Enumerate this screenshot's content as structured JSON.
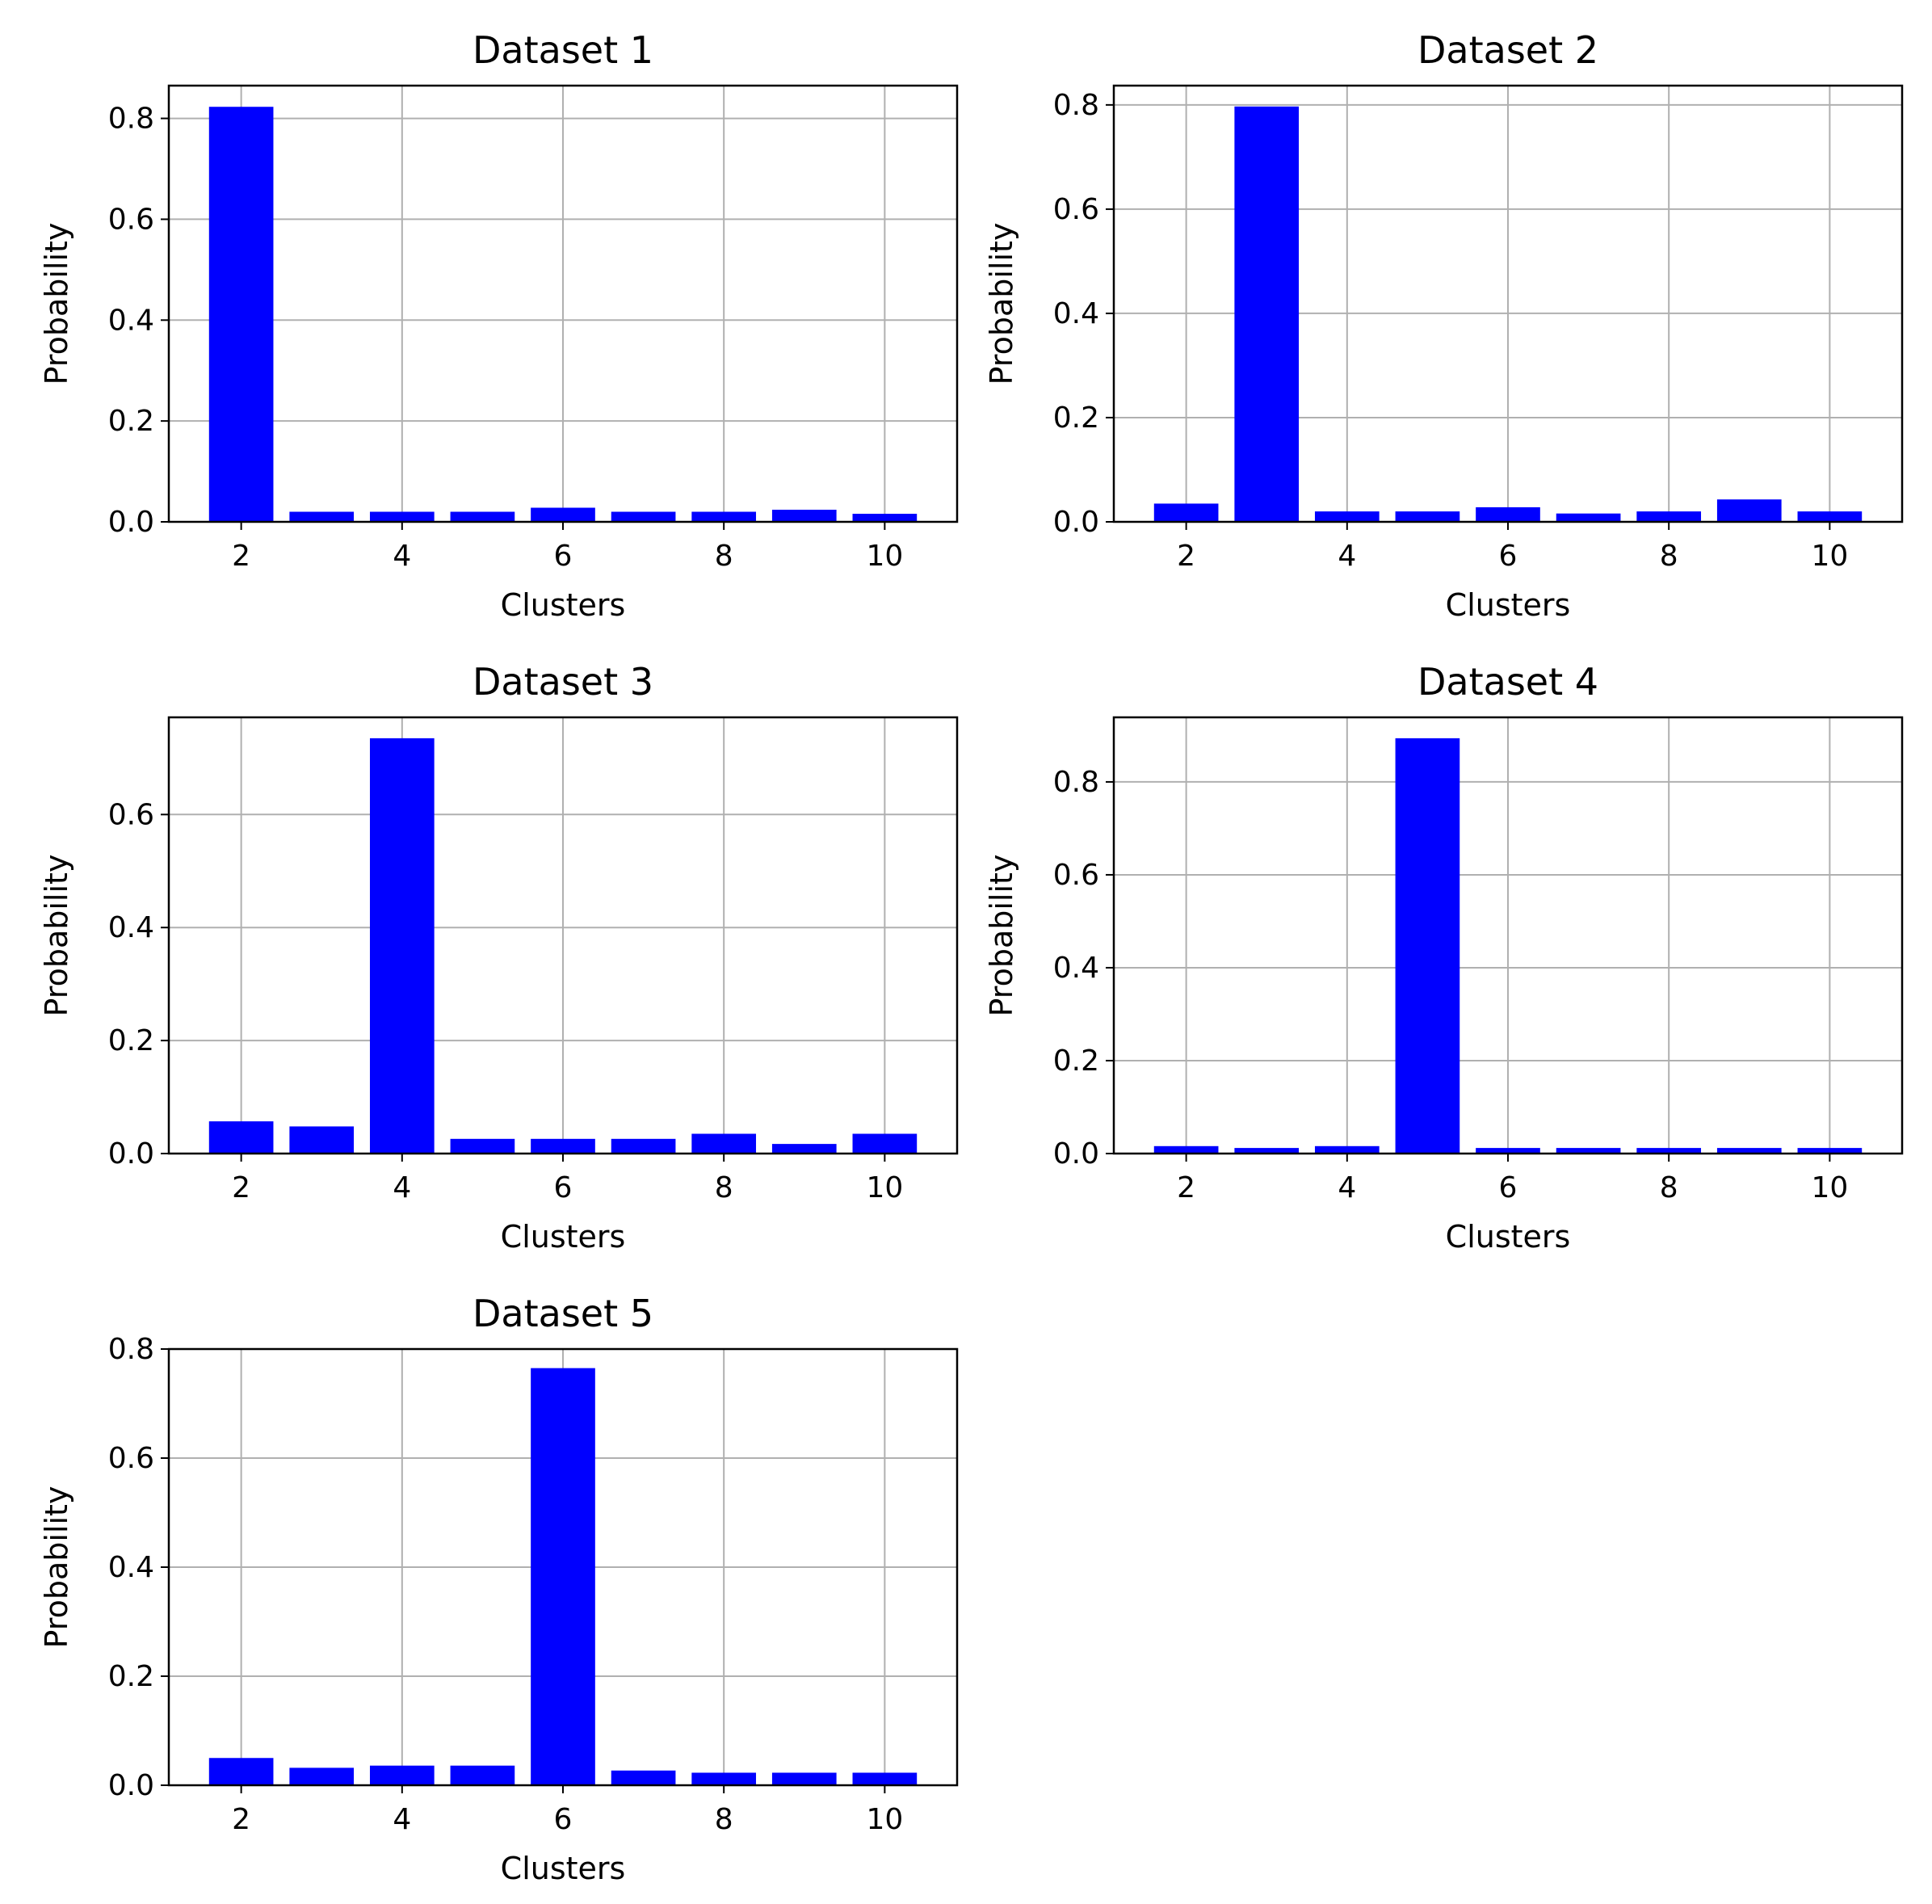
{
  "style": {
    "bar_color": "#0000ff",
    "grid_color": "#b0b0b0",
    "axis_color": "#000000",
    "background": "#ffffff"
  },
  "chart_data": [
    {
      "type": "bar",
      "title": "Dataset 1",
      "xlabel": "Clusters",
      "ylabel": "Probability",
      "grid": true,
      "x": [
        2,
        3,
        4,
        5,
        6,
        7,
        8,
        9,
        10
      ],
      "values": [
        0.823,
        0.02,
        0.02,
        0.02,
        0.028,
        0.02,
        0.02,
        0.024,
        0.016
      ],
      "xlim": [
        1.1,
        10.9
      ],
      "ylim": [
        0,
        0.865
      ],
      "xticks": [
        2,
        4,
        6,
        8,
        10
      ],
      "xtick_labels": [
        "2",
        "4",
        "6",
        "8",
        "10"
      ],
      "yticks": [
        0.0,
        0.2,
        0.4,
        0.6,
        0.8
      ],
      "ytick_labels": [
        "0.0",
        "0.2",
        "0.4",
        "0.6",
        "0.8"
      ]
    },
    {
      "type": "bar",
      "title": "Dataset 2",
      "xlabel": "Clusters",
      "ylabel": "Probability",
      "grid": true,
      "x": [
        2,
        3,
        4,
        5,
        6,
        7,
        8,
        9,
        10
      ],
      "values": [
        0.035,
        0.797,
        0.02,
        0.02,
        0.028,
        0.016,
        0.02,
        0.043,
        0.02
      ],
      "xlim": [
        1.1,
        10.9
      ],
      "ylim": [
        0,
        0.837
      ],
      "xticks": [
        2,
        4,
        6,
        8,
        10
      ],
      "xtick_labels": [
        "2",
        "4",
        "6",
        "8",
        "10"
      ],
      "yticks": [
        0.0,
        0.2,
        0.4,
        0.6,
        0.8
      ],
      "ytick_labels": [
        "0.0",
        "0.2",
        "0.4",
        "0.6",
        "0.8"
      ]
    },
    {
      "type": "bar",
      "title": "Dataset 3",
      "xlabel": "Clusters",
      "ylabel": "Probability",
      "grid": true,
      "x": [
        2,
        3,
        4,
        5,
        6,
        7,
        8,
        9,
        10
      ],
      "values": [
        0.057,
        0.048,
        0.735,
        0.026,
        0.026,
        0.026,
        0.035,
        0.017,
        0.035
      ],
      "xlim": [
        1.1,
        10.9
      ],
      "ylim": [
        0,
        0.772
      ],
      "xticks": [
        2,
        4,
        6,
        8,
        10
      ],
      "xtick_labels": [
        "2",
        "4",
        "6",
        "8",
        "10"
      ],
      "yticks": [
        0.0,
        0.2,
        0.4,
        0.6
      ],
      "ytick_labels": [
        "0.0",
        "0.2",
        "0.4",
        "0.6"
      ]
    },
    {
      "type": "bar",
      "title": "Dataset 4",
      "xlabel": "Clusters",
      "ylabel": "Probability",
      "grid": true,
      "x": [
        2,
        3,
        4,
        5,
        6,
        7,
        8,
        9,
        10
      ],
      "values": [
        0.016,
        0.012,
        0.016,
        0.894,
        0.012,
        0.012,
        0.012,
        0.012,
        0.012
      ],
      "xlim": [
        1.1,
        10.9
      ],
      "ylim": [
        0,
        0.939
      ],
      "xticks": [
        2,
        4,
        6,
        8,
        10
      ],
      "xtick_labels": [
        "2",
        "4",
        "6",
        "8",
        "10"
      ],
      "yticks": [
        0.0,
        0.2,
        0.4,
        0.6,
        0.8
      ],
      "ytick_labels": [
        "0.0",
        "0.2",
        "0.4",
        "0.6",
        "0.8"
      ]
    },
    {
      "type": "bar",
      "title": "Dataset 5",
      "xlabel": "Clusters",
      "ylabel": "Probability",
      "grid": true,
      "x": [
        2,
        3,
        4,
        5,
        6,
        7,
        8,
        9,
        10
      ],
      "values": [
        0.05,
        0.032,
        0.036,
        0.036,
        0.765,
        0.027,
        0.023,
        0.023,
        0.023
      ],
      "xlim": [
        1.1,
        10.9
      ],
      "ylim": [
        0,
        0.8
      ],
      "xticks": [
        2,
        4,
        6,
        8,
        10
      ],
      "xtick_labels": [
        "2",
        "4",
        "6",
        "8",
        "10"
      ],
      "yticks": [
        0.0,
        0.2,
        0.4,
        0.6,
        0.8
      ],
      "ytick_labels": [
        "0.0",
        "0.2",
        "0.4",
        "0.6",
        "0.8"
      ]
    }
  ]
}
